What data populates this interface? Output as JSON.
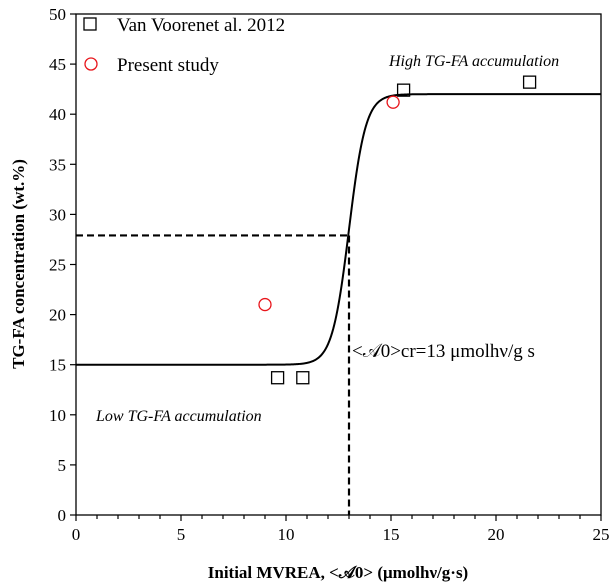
{
  "chart_data": {
    "type": "scatter",
    "xlabel": "Initial MVREA, <𝒜0> (μmolhν/g·s)",
    "ylabel": "TG-FA concentration (wt.%)",
    "xlim": [
      0,
      25
    ],
    "ylim": [
      0,
      50
    ],
    "x_ticks": [
      0,
      5,
      10,
      15,
      20,
      25
    ],
    "y_ticks": [
      0,
      5,
      10,
      15,
      20,
      25,
      30,
      35,
      40,
      45,
      50
    ],
    "legend_position": "top-left",
    "grid": false,
    "series": [
      {
        "name": "Van Voorenet al. 2012",
        "marker": "square",
        "color": "#000000",
        "points": [
          [
            9.6,
            13.7
          ],
          [
            10.8,
            13.7
          ],
          [
            15.6,
            42.4
          ],
          [
            21.6,
            43.2
          ]
        ]
      },
      {
        "name": "Present study",
        "marker": "circle",
        "color": "#e8151b",
        "points": [
          [
            9.0,
            21.0
          ],
          [
            15.1,
            41.2
          ]
        ]
      }
    ],
    "fit_curve": {
      "type": "sigmoid",
      "low": 15,
      "high": 42,
      "midpoint": 13,
      "steepness": 2.5
    },
    "critical_line": {
      "x": 13,
      "y": 27.9
    },
    "annotations": {
      "high": "High TG-FA accumulation",
      "low": "Low TG-FA accumulation",
      "critical": "<𝒜0>cr=13 μmolhν/g s"
    }
  }
}
